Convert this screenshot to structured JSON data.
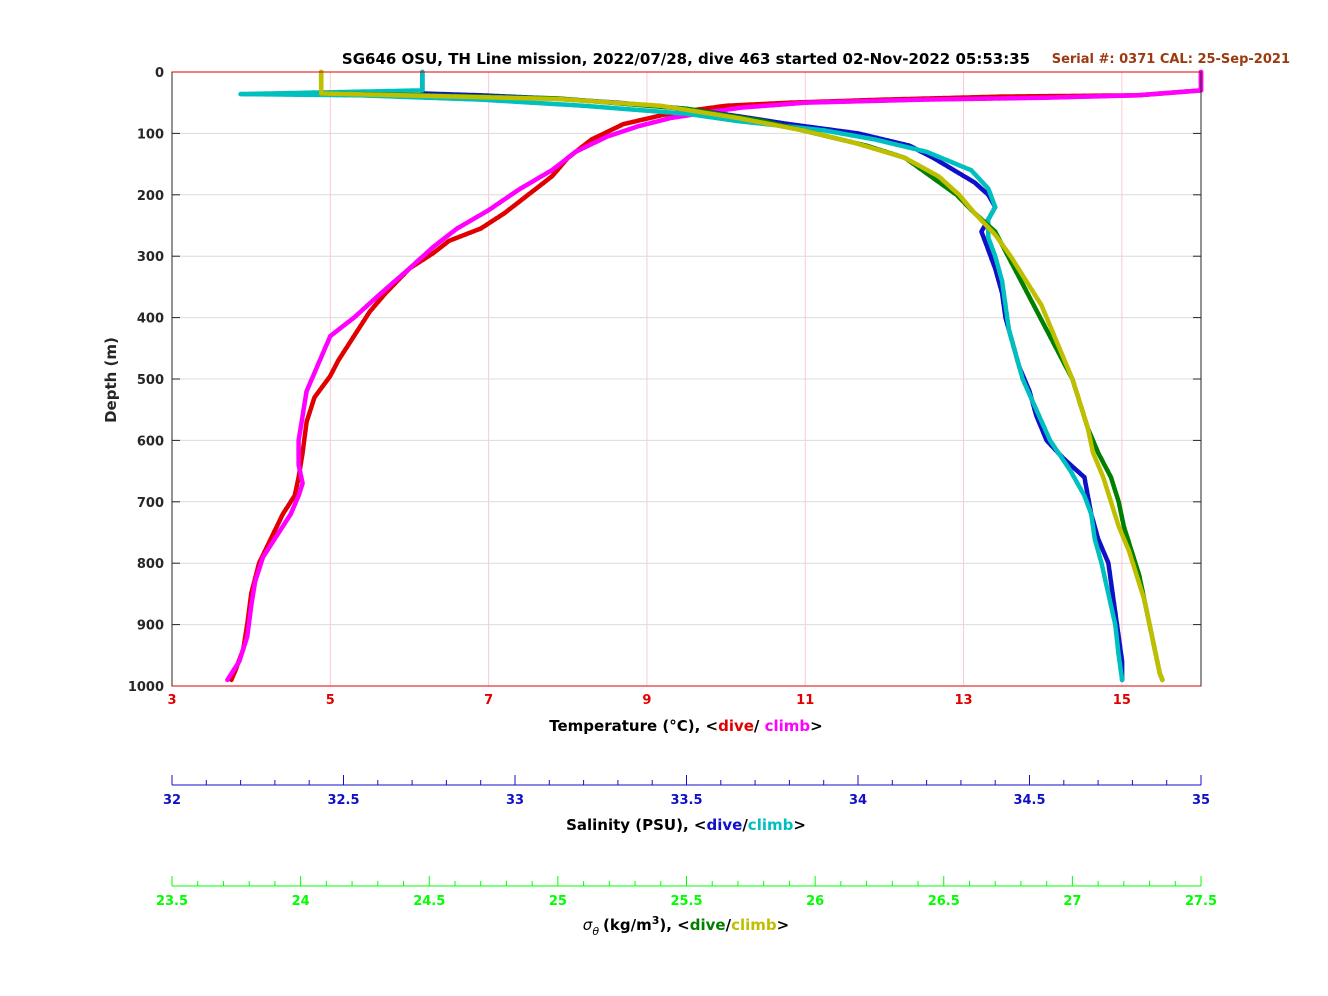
{
  "chart_data": {
    "type": "scatter",
    "title": "SG646 OSU, TH Line mission, 2022/07/28, dive 463 started 02-Nov-2022 05:53:35",
    "serial_text": "Serial #: 0371  CAL: 25-Sep-2021",
    "ylabel": "Depth (m)",
    "ylim": [
      0,
      1000
    ],
    "y_ticks": [
      "0",
      "100",
      "200",
      "300",
      "400",
      "500",
      "600",
      "700",
      "800",
      "900",
      "1000"
    ],
    "y_reversed": true,
    "grid": true,
    "axes": {
      "temperature": {
        "label_prefix": "Temperature (°C), <",
        "dive_word": "dive",
        "separator": "/ ",
        "climb_word": "climb",
        "label_suffix": ">",
        "range": [
          3,
          16
        ],
        "ticks": [
          "3",
          "5",
          "7",
          "9",
          "11",
          "13",
          "15"
        ],
        "color": "#e00000"
      },
      "salinity": {
        "label_prefix": "Salinity (PSU), <",
        "dive_word": "dive",
        "separator": "/",
        "climb_word": "climb",
        "label_suffix": ">",
        "range": [
          32,
          35
        ],
        "ticks": [
          "32",
          "32.5",
          "33",
          "33.5",
          "34",
          "34.5",
          "35"
        ],
        "color": "#1010c8"
      },
      "density": {
        "label_symbol": "σ",
        "label_subscript": "θ",
        "label_units": "(kg/m",
        "label_power": "3",
        "label_prefix": "), <",
        "dive_word": "dive",
        "separator": "/",
        "climb_word": "climb",
        "label_suffix": ">",
        "range": [
          23.5,
          27.5
        ],
        "ticks": [
          "23.5",
          "24",
          "24.5",
          "25",
          "25.5",
          "26",
          "26.5",
          "27",
          "27.5"
        ],
        "color": "#00ff00"
      }
    },
    "series": [
      {
        "name": "Temperature dive",
        "axis": "temperature",
        "color": "#e00000",
        "points": [
          [
            16.0,
            0
          ],
          [
            16.0,
            30
          ],
          [
            15.2,
            38
          ],
          [
            13.5,
            40
          ],
          [
            12.0,
            45
          ],
          [
            10.8,
            50
          ],
          [
            10.0,
            55
          ],
          [
            9.6,
            62
          ],
          [
            9.2,
            70
          ],
          [
            8.7,
            85
          ],
          [
            8.3,
            110
          ],
          [
            8.0,
            140
          ],
          [
            7.8,
            170
          ],
          [
            7.5,
            200
          ],
          [
            7.2,
            230
          ],
          [
            6.9,
            255
          ],
          [
            6.5,
            275
          ],
          [
            6.3,
            295
          ],
          [
            6.0,
            320
          ],
          [
            5.7,
            360
          ],
          [
            5.5,
            390
          ],
          [
            5.3,
            430
          ],
          [
            5.1,
            470
          ],
          [
            5.0,
            495
          ],
          [
            4.8,
            530
          ],
          [
            4.7,
            570
          ],
          [
            4.65,
            620
          ],
          [
            4.6,
            660
          ],
          [
            4.55,
            690
          ],
          [
            4.4,
            720
          ],
          [
            4.25,
            760
          ],
          [
            4.1,
            800
          ],
          [
            4.0,
            850
          ],
          [
            3.95,
            900
          ],
          [
            3.9,
            940
          ],
          [
            3.8,
            975
          ],
          [
            3.75,
            990
          ]
        ]
      },
      {
        "name": "Temperature climb",
        "axis": "temperature",
        "color": "#ff00ff",
        "points": [
          [
            16.0,
            0
          ],
          [
            16.0,
            30
          ],
          [
            15.2,
            38
          ],
          [
            14.0,
            42
          ],
          [
            12.5,
            45
          ],
          [
            11.0,
            50
          ],
          [
            10.2,
            58
          ],
          [
            9.8,
            65
          ],
          [
            9.3,
            75
          ],
          [
            8.9,
            88
          ],
          [
            8.5,
            105
          ],
          [
            8.1,
            130
          ],
          [
            7.8,
            160
          ],
          [
            7.4,
            190
          ],
          [
            7.0,
            225
          ],
          [
            6.6,
            255
          ],
          [
            6.3,
            285
          ],
          [
            6.0,
            320
          ],
          [
            5.6,
            365
          ],
          [
            5.3,
            400
          ],
          [
            5.0,
            430
          ],
          [
            4.9,
            460
          ],
          [
            4.8,
            490
          ],
          [
            4.7,
            520
          ],
          [
            4.65,
            560
          ],
          [
            4.6,
            600
          ],
          [
            4.6,
            640
          ],
          [
            4.65,
            670
          ],
          [
            4.6,
            690
          ],
          [
            4.5,
            720
          ],
          [
            4.3,
            760
          ],
          [
            4.15,
            790
          ],
          [
            4.05,
            830
          ],
          [
            4.0,
            870
          ],
          [
            3.95,
            920
          ],
          [
            3.85,
            960
          ],
          [
            3.7,
            990
          ]
        ]
      },
      {
        "name": "Salinity dive",
        "axis": "salinity",
        "color": "#1010c8",
        "points": [
          [
            32.73,
            0
          ],
          [
            32.73,
            35
          ],
          [
            32.9,
            38
          ],
          [
            33.1,
            43
          ],
          [
            33.3,
            50
          ],
          [
            33.5,
            60
          ],
          [
            33.65,
            72
          ],
          [
            33.8,
            85
          ],
          [
            34.0,
            100
          ],
          [
            34.15,
            120
          ],
          [
            34.22,
            140
          ],
          [
            34.28,
            160
          ],
          [
            34.34,
            180
          ],
          [
            34.38,
            200
          ],
          [
            34.4,
            220
          ],
          [
            34.38,
            240
          ],
          [
            34.36,
            260
          ],
          [
            34.38,
            290
          ],
          [
            34.4,
            320
          ],
          [
            34.42,
            360
          ],
          [
            34.43,
            400
          ],
          [
            34.45,
            440
          ],
          [
            34.47,
            480
          ],
          [
            34.5,
            520
          ],
          [
            34.52,
            560
          ],
          [
            34.55,
            600
          ],
          [
            34.6,
            630
          ],
          [
            34.66,
            660
          ],
          [
            34.67,
            690
          ],
          [
            34.68,
            720
          ],
          [
            34.7,
            760
          ],
          [
            34.73,
            800
          ],
          [
            34.74,
            840
          ],
          [
            34.75,
            880
          ],
          [
            34.76,
            920
          ],
          [
            34.77,
            960
          ],
          [
            34.77,
            990
          ]
        ]
      },
      {
        "name": "Salinity climb",
        "axis": "salinity",
        "color": "#00bfbf",
        "points": [
          [
            32.73,
            0
          ],
          [
            32.73,
            30
          ],
          [
            32.2,
            36
          ],
          [
            32.55,
            38
          ],
          [
            32.9,
            45
          ],
          [
            33.2,
            55
          ],
          [
            33.5,
            68
          ],
          [
            33.65,
            80
          ],
          [
            33.9,
            95
          ],
          [
            34.05,
            110
          ],
          [
            34.2,
            130
          ],
          [
            34.33,
            160
          ],
          [
            34.38,
            190
          ],
          [
            34.4,
            220
          ],
          [
            34.38,
            240
          ],
          [
            34.38,
            270
          ],
          [
            34.4,
            300
          ],
          [
            34.42,
            340
          ],
          [
            34.43,
            380
          ],
          [
            34.44,
            420
          ],
          [
            34.46,
            460
          ],
          [
            34.48,
            500
          ],
          [
            34.52,
            550
          ],
          [
            34.56,
            600
          ],
          [
            34.62,
            650
          ],
          [
            34.66,
            690
          ],
          [
            34.68,
            720
          ],
          [
            34.69,
            760
          ],
          [
            34.71,
            800
          ],
          [
            34.73,
            850
          ],
          [
            34.75,
            900
          ],
          [
            34.76,
            950
          ],
          [
            34.77,
            990
          ]
        ]
      },
      {
        "name": "Density dive",
        "axis": "density",
        "color": "#008000",
        "points": [
          [
            24.08,
            0
          ],
          [
            24.08,
            35
          ],
          [
            24.5,
            38
          ],
          [
            25.0,
            43
          ],
          [
            25.5,
            60
          ],
          [
            25.8,
            80
          ],
          [
            26.0,
            100
          ],
          [
            26.2,
            120
          ],
          [
            26.35,
            140
          ],
          [
            26.45,
            170
          ],
          [
            26.55,
            200
          ],
          [
            26.62,
            230
          ],
          [
            26.7,
            260
          ],
          [
            26.75,
            300
          ],
          [
            26.8,
            340
          ],
          [
            26.85,
            380
          ],
          [
            26.9,
            420
          ],
          [
            26.95,
            460
          ],
          [
            27.0,
            500
          ],
          [
            27.03,
            540
          ],
          [
            27.06,
            580
          ],
          [
            27.1,
            620
          ],
          [
            27.15,
            660
          ],
          [
            27.18,
            700
          ],
          [
            27.2,
            740
          ],
          [
            27.23,
            780
          ],
          [
            27.26,
            820
          ],
          [
            27.28,
            860
          ],
          [
            27.3,
            900
          ],
          [
            27.32,
            940
          ],
          [
            27.34,
            980
          ],
          [
            27.35,
            990
          ]
        ]
      },
      {
        "name": "Density climb",
        "axis": "density",
        "color": "#bfbf00",
        "points": [
          [
            24.08,
            0
          ],
          [
            24.08,
            35
          ],
          [
            24.4,
            38
          ],
          [
            25.0,
            44
          ],
          [
            25.4,
            55
          ],
          [
            25.7,
            75
          ],
          [
            25.95,
            95
          ],
          [
            26.15,
            115
          ],
          [
            26.35,
            140
          ],
          [
            26.48,
            170
          ],
          [
            26.56,
            200
          ],
          [
            26.62,
            230
          ],
          [
            26.7,
            265
          ],
          [
            26.76,
            300
          ],
          [
            26.82,
            340
          ],
          [
            26.88,
            380
          ],
          [
            26.92,
            420
          ],
          [
            26.96,
            460
          ],
          [
            27.0,
            500
          ],
          [
            27.03,
            540
          ],
          [
            27.06,
            580
          ],
          [
            27.08,
            620
          ],
          [
            27.12,
            660
          ],
          [
            27.15,
            700
          ],
          [
            27.18,
            740
          ],
          [
            27.22,
            780
          ],
          [
            27.25,
            820
          ],
          [
            27.28,
            860
          ],
          [
            27.3,
            900
          ],
          [
            27.32,
            940
          ],
          [
            27.34,
            980
          ],
          [
            27.35,
            990
          ]
        ]
      }
    ]
  }
}
